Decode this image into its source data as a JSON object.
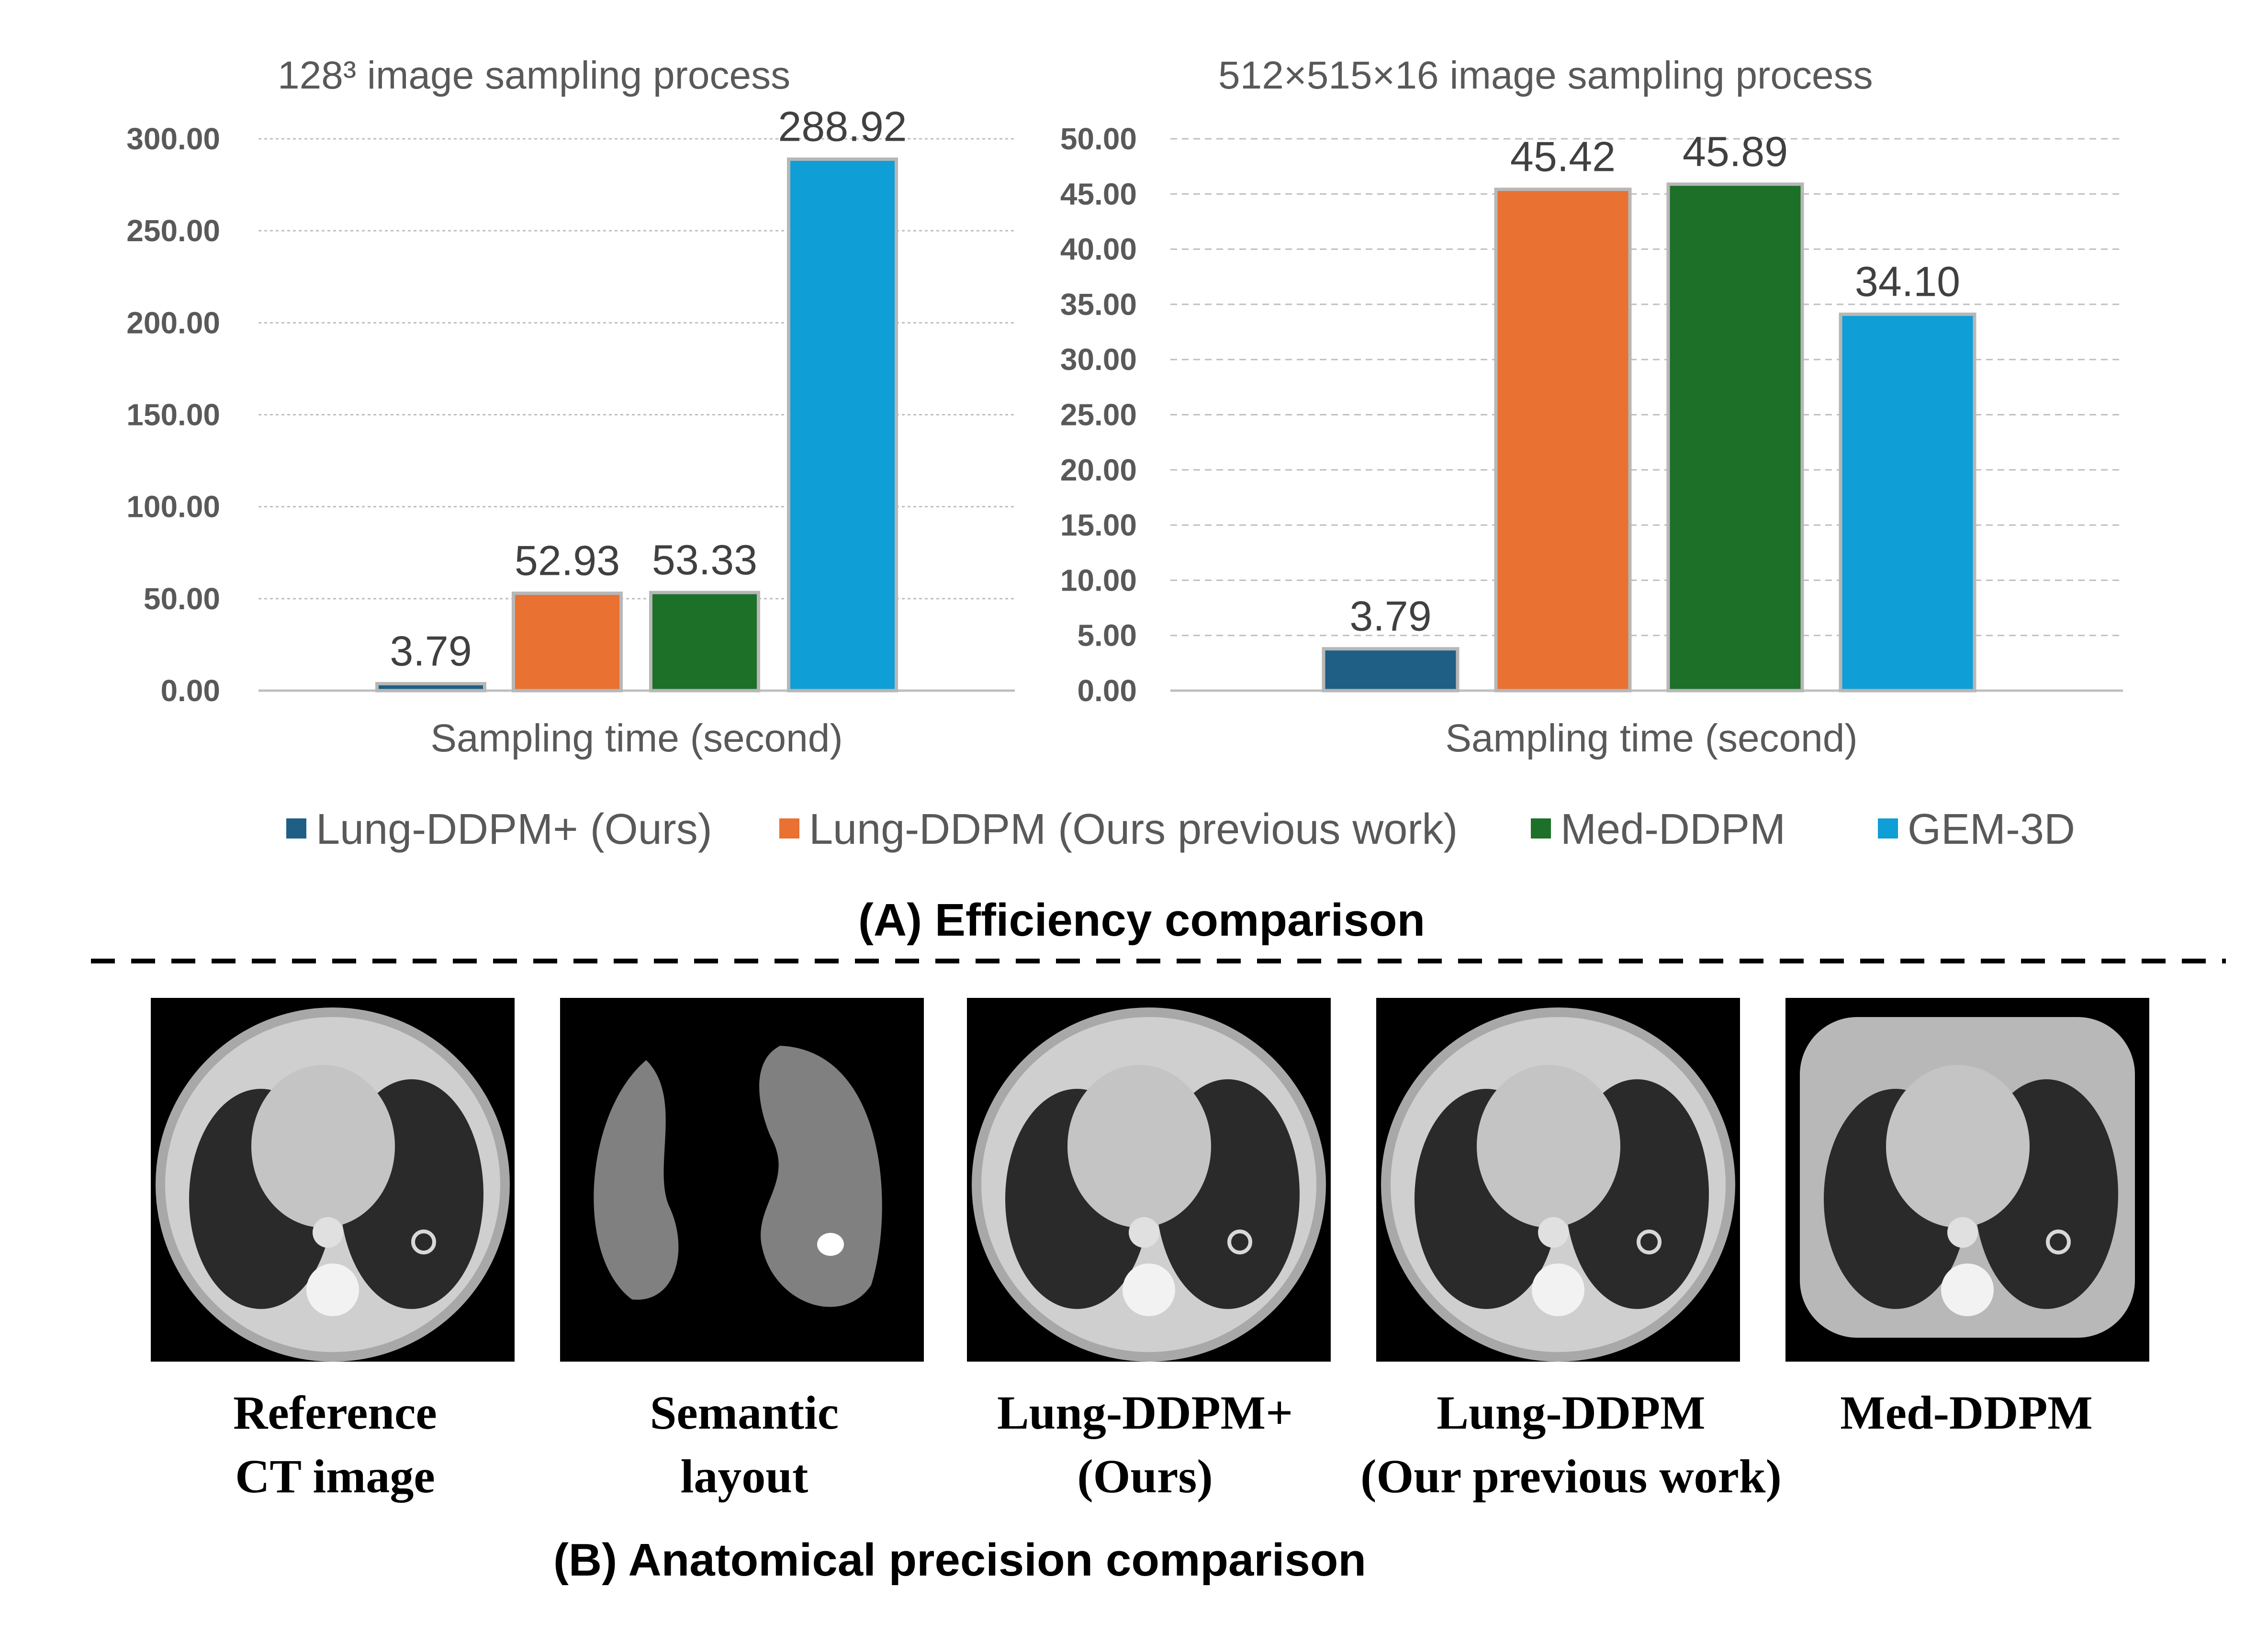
{
  "legend": [
    {
      "name": "Lung-DDPM+ (Ours)",
      "color": "#1f5f86"
    },
    {
      "name": "Lung-DDPM (Ours previous work)",
      "color": "#e97132"
    },
    {
      "name": "Med-DDPM",
      "color": "#1c7028"
    },
    {
      "name": "GEM-3D",
      "color": "#0f9ed5"
    }
  ],
  "section_a": "(A) Efficiency comparison",
  "section_b": "(B) Anatomical precision comparison",
  "chart_data": [
    {
      "type": "bar",
      "title": "128³ image sampling process",
      "xlabel": "Sampling time (second)",
      "categories": [
        "Lung-DDPM+ (Ours)",
        "Lung-DDPM (Ours previous work)",
        "Med-DDPM",
        "GEM-3D"
      ],
      "values": [
        3.79,
        52.93,
        53.33,
        288.92
      ],
      "value_labels": [
        "3.79",
        "52.93",
        "53.33",
        "288.92"
      ],
      "colors": [
        "#1f5f86",
        "#e97132",
        "#1c7028",
        "#0f9ed5"
      ],
      "ylim": [
        0,
        300
      ],
      "yticks": [
        "0.00",
        "50.00",
        "100.00",
        "150.00",
        "200.00",
        "250.00",
        "300.00"
      ],
      "grid": true
    },
    {
      "type": "bar",
      "title": "512×515×16 image sampling process",
      "xlabel": "Sampling time (second)",
      "categories": [
        "Lung-DDPM+ (Ours)",
        "Lung-DDPM (Ours previous work)",
        "Med-DDPM",
        "GEM-3D"
      ],
      "values": [
        3.79,
        45.42,
        45.89,
        34.1
      ],
      "value_labels": [
        "3.79",
        "45.42",
        "45.89",
        "34.10"
      ],
      "colors": [
        "#1f5f86",
        "#e97132",
        "#1c7028",
        "#0f9ed5"
      ],
      "ylim": [
        0,
        50
      ],
      "yticks": [
        "0.00",
        "5.00",
        "10.00",
        "15.00",
        "20.00",
        "25.00",
        "30.00",
        "35.00",
        "40.00",
        "45.00",
        "50.00"
      ],
      "grid": true
    }
  ],
  "panels": [
    {
      "line1": "Reference",
      "line2": "CT image",
      "kind": "ct"
    },
    {
      "line1": "Semantic",
      "line2": "layout",
      "kind": "mask"
    },
    {
      "line1": "Lung-DDPM+",
      "line2": "(Ours)",
      "kind": "ct"
    },
    {
      "line1": "Lung-DDPM",
      "line2": "(Our previous work)",
      "kind": "ct"
    },
    {
      "line1": "Med-DDPM",
      "line2": "",
      "kind": "ct-wide"
    }
  ]
}
